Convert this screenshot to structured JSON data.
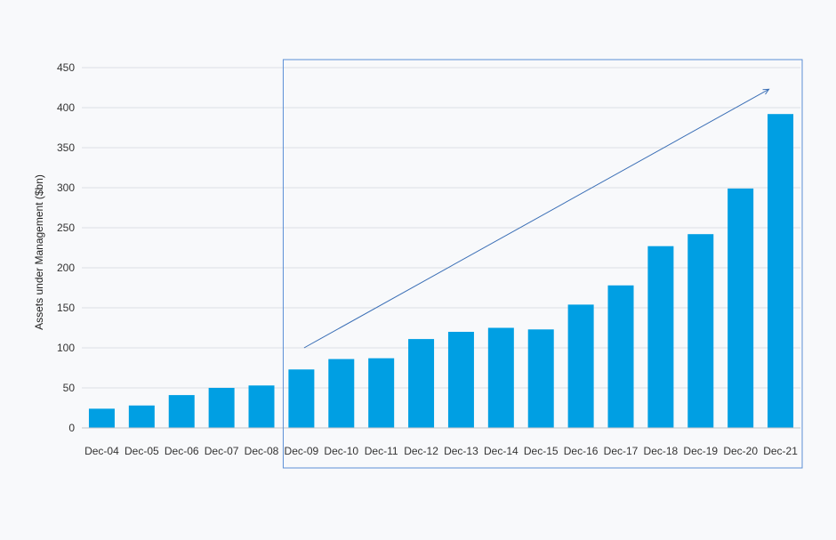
{
  "chart_data": {
    "type": "bar",
    "title": "",
    "xlabel": "",
    "ylabel": "Assets under Management ($bn)",
    "ylim": [
      0,
      450
    ],
    "yticks": [
      0,
      50,
      100,
      150,
      200,
      250,
      300,
      350,
      400,
      450
    ],
    "grid": true,
    "categories": [
      "Dec-04",
      "Dec-05",
      "Dec-06",
      "Dec-07",
      "Dec-08",
      "Dec-09",
      "Dec-10",
      "Dec-11",
      "Dec-12",
      "Dec-13",
      "Dec-14",
      "Dec-15",
      "Dec-16",
      "Dec-17",
      "Dec-18",
      "Dec-19",
      "Dec-20",
      "Dec-21"
    ],
    "values": [
      24,
      28,
      41,
      50,
      53,
      73,
      86,
      87,
      111,
      120,
      125,
      123,
      154,
      178,
      227,
      242,
      299,
      392
    ],
    "bar_color": "#009fe3",
    "highlight": {
      "from_category": "Dec-09",
      "to_category": "Dec-21",
      "box_color": "#5b8fd6",
      "arrow": {
        "from_value": 100,
        "to_value": 423
      }
    }
  }
}
